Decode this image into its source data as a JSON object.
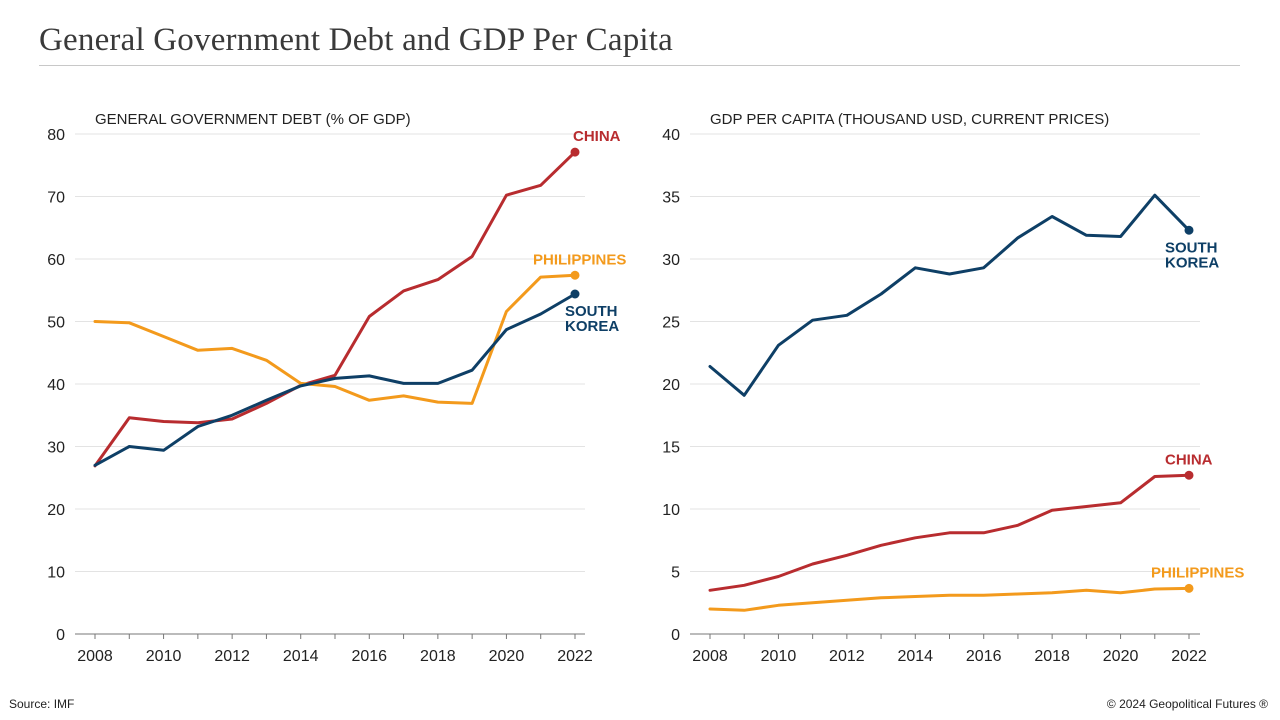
{
  "header": {
    "title": "General Government Debt and GDP Per Capita"
  },
  "footer": {
    "source": "Source: IMF",
    "copyright": "© 2024 Geopolitical Futures ®"
  },
  "colors": {
    "China": "#b82c2f",
    "Philippines": "#f39a1c",
    "South Korea": "#0e3f66",
    "grid": "#e3e3e3",
    "axis": "#777777"
  },
  "chart_data": [
    {
      "type": "line",
      "title": "GENERAL GOVERNMENT DEBT (% OF GDP)",
      "xlabel": "",
      "ylabel": "",
      "x": [
        2008,
        2009,
        2010,
        2011,
        2012,
        2013,
        2014,
        2015,
        2016,
        2017,
        2018,
        2019,
        2020,
        2021,
        2022
      ],
      "xticks": [
        2008,
        2010,
        2012,
        2014,
        2016,
        2018,
        2020,
        2022
      ],
      "xlim": [
        2008,
        2022
      ],
      "ylim": [
        0,
        80
      ],
      "yticks": [
        0,
        10,
        20,
        30,
        40,
        50,
        60,
        70,
        80
      ],
      "grid": true,
      "legend": "direct-labels-at-line-ends",
      "series": [
        {
          "name": "China",
          "label": [
            "CHINA"
          ],
          "values": [
            26.9,
            34.6,
            34.0,
            33.8,
            34.4,
            36.9,
            39.8,
            41.4,
            50.8,
            54.9,
            56.7,
            60.4,
            70.2,
            71.8,
            77.1
          ]
        },
        {
          "name": "Philippines",
          "label": [
            "PHILIPPINES"
          ],
          "values": [
            50.0,
            49.8,
            47.6,
            45.4,
            45.7,
            43.8,
            40.1,
            39.6,
            37.4,
            38.1,
            37.1,
            36.9,
            51.6,
            57.1,
            57.4
          ]
        },
        {
          "name": "South Korea",
          "label": [
            "SOUTH",
            "KOREA"
          ],
          "values": [
            27.0,
            30.0,
            29.4,
            33.2,
            35.0,
            37.4,
            39.7,
            40.9,
            41.3,
            40.1,
            40.1,
            42.2,
            48.7,
            51.2,
            54.4
          ]
        }
      ]
    },
    {
      "type": "line",
      "title": "GDP PER CAPITA (THOUSAND USD, CURRENT PRICES)",
      "xlabel": "",
      "ylabel": "",
      "x": [
        2008,
        2009,
        2010,
        2011,
        2012,
        2013,
        2014,
        2015,
        2016,
        2017,
        2018,
        2019,
        2020,
        2021,
        2022
      ],
      "xticks": [
        2008,
        2010,
        2012,
        2014,
        2016,
        2018,
        2020,
        2022
      ],
      "xlim": [
        2008,
        2022
      ],
      "ylim": [
        0,
        40
      ],
      "yticks": [
        0,
        5,
        10,
        15,
        20,
        25,
        30,
        35,
        40
      ],
      "grid": true,
      "legend": "direct-labels-at-line-ends",
      "series": [
        {
          "name": "South Korea",
          "label": [
            "SOUTH",
            "KOREA"
          ],
          "values": [
            21.4,
            19.1,
            23.1,
            25.1,
            25.5,
            27.2,
            29.3,
            28.8,
            29.3,
            31.7,
            33.4,
            31.9,
            31.8,
            35.1,
            32.3
          ]
        },
        {
          "name": "China",
          "label": [
            "CHINA"
          ],
          "values": [
            3.5,
            3.9,
            4.6,
            5.6,
            6.3,
            7.1,
            7.7,
            8.1,
            8.1,
            8.7,
            9.9,
            10.2,
            10.5,
            12.6,
            12.7
          ]
        },
        {
          "name": "Philippines",
          "label": [
            "PHILIPPINES"
          ],
          "values": [
            2.0,
            1.9,
            2.3,
            2.5,
            2.7,
            2.9,
            3.0,
            3.1,
            3.1,
            3.2,
            3.3,
            3.5,
            3.3,
            3.6,
            3.65
          ]
        }
      ]
    }
  ]
}
